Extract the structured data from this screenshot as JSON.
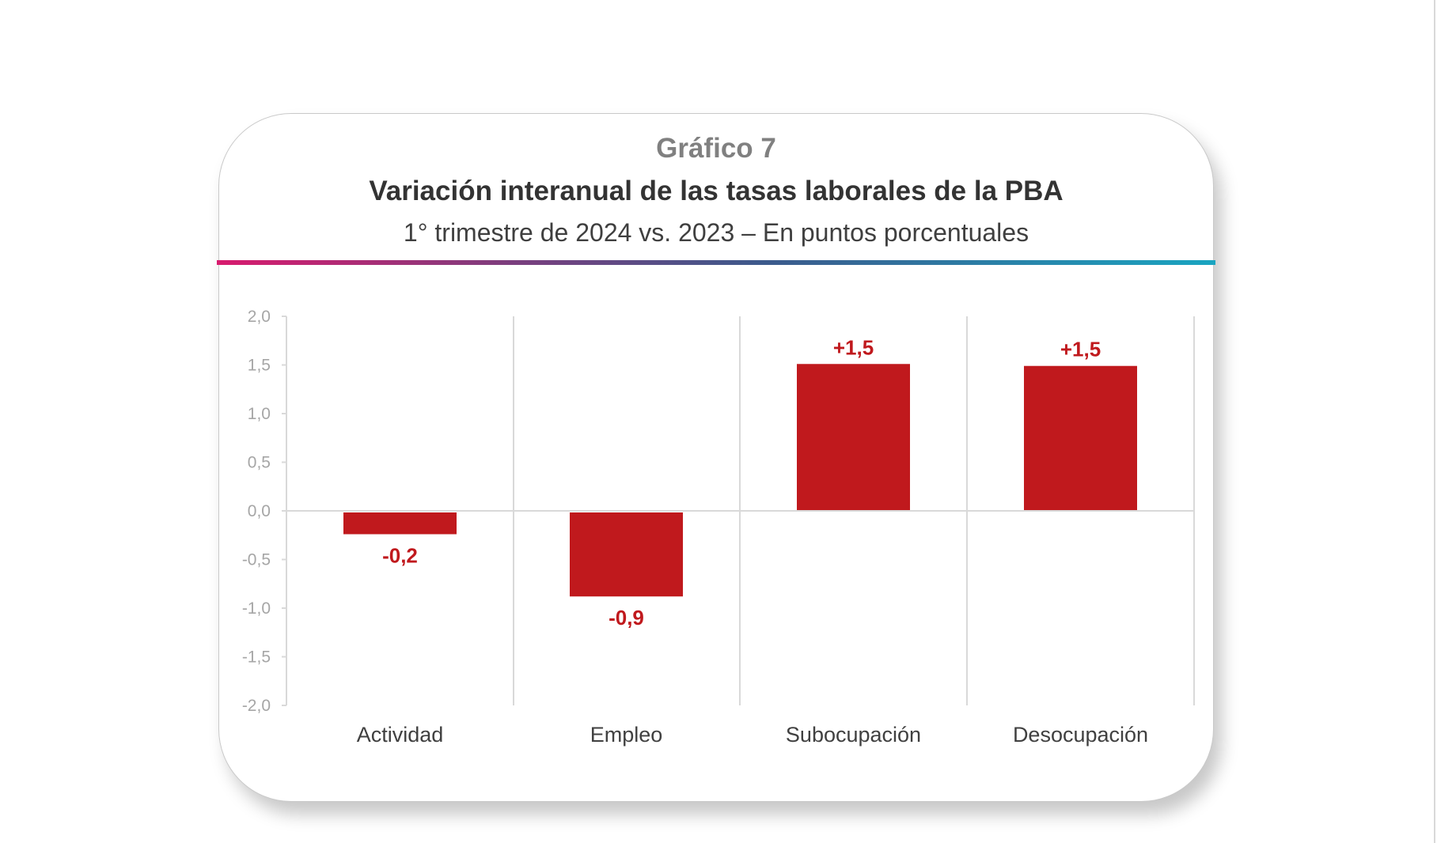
{
  "header": {
    "kicker": "Gráfico 7",
    "title": "Variación interanual de las tasas laborales de la PBA",
    "subtitle": "1° trimestre de 2024 vs. 2023 – En puntos porcentuales"
  },
  "colors": {
    "bar": "#c0191d",
    "label": "#c0191d",
    "tick": "#a6a6a6",
    "grid": "#d9d9d9",
    "category": "#404040"
  },
  "chart_data": {
    "type": "bar",
    "categories": [
      "Actividad",
      "Empleo",
      "Subocupación",
      "Desocupación"
    ],
    "values": [
      -0.24,
      -0.88,
      1.51,
      1.49
    ],
    "data_labels": [
      "-0,2",
      "-0,9",
      "+1,5",
      "+1,5"
    ],
    "ylim": [
      -2.0,
      2.0
    ],
    "yticks": [
      2.0,
      1.5,
      1.0,
      0.5,
      0.0,
      -0.5,
      -1.0,
      -1.5,
      -2.0
    ],
    "ytick_labels": [
      "2,0",
      "1,5",
      "1,0",
      "0,5",
      "0,0",
      "-0,5",
      "-1,0",
      "-1,5",
      "-2,0"
    ],
    "title": "Variación interanual de las tasas laborales de la PBA",
    "xlabel": "",
    "ylabel": "",
    "grid": false,
    "legend": "none"
  }
}
